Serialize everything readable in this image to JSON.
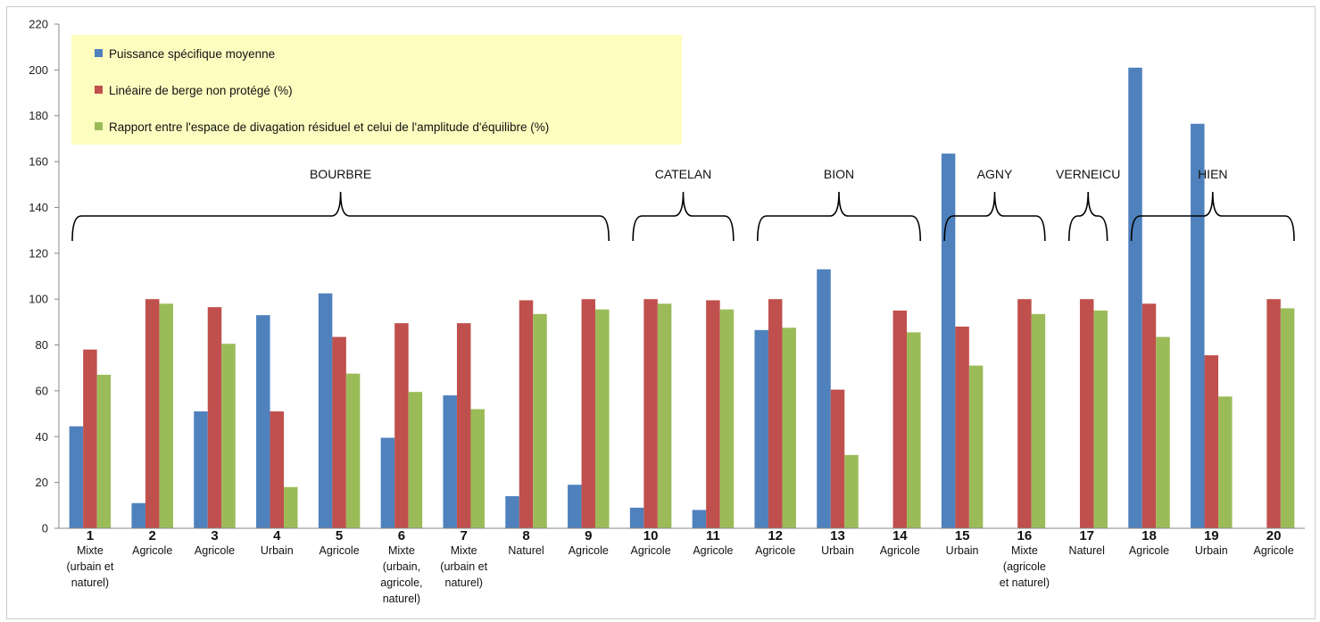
{
  "chart_data": {
    "type": "bar",
    "ylim": [
      0,
      220
    ],
    "yticks": [
      0,
      20,
      40,
      60,
      80,
      100,
      120,
      140,
      160,
      180,
      200,
      220
    ],
    "grid": false,
    "legend_position": "top-left",
    "categories": [
      "1",
      "2",
      "3",
      "4",
      "5",
      "6",
      "7",
      "8",
      "9",
      "10",
      "11",
      "12",
      "13",
      "14",
      "15",
      "16",
      "17",
      "18",
      "19",
      "20"
    ],
    "category_sublabels": [
      [
        "Mixte",
        "(urbain et",
        "naturel)"
      ],
      [
        "Agricole"
      ],
      [
        "Agricole"
      ],
      [
        "Urbain"
      ],
      [
        "Agricole"
      ],
      [
        "Mixte",
        "(urbain,",
        "agricole,",
        "naturel)"
      ],
      [
        "Mixte",
        "(urbain et",
        "naturel)"
      ],
      [
        "Naturel"
      ],
      [
        "Agricole"
      ],
      [
        "Agricole"
      ],
      [
        "Agricole"
      ],
      [
        "Agricole"
      ],
      [
        "Urbain"
      ],
      [
        "Agricole"
      ],
      [
        "Urbain"
      ],
      [
        "Mixte",
        "(agricole",
        "et naturel)"
      ],
      [
        "Naturel"
      ],
      [
        "Agricole"
      ],
      [
        "Urbain"
      ],
      [
        "Agricole"
      ]
    ],
    "series": [
      {
        "name": "Puissance spécifique moyenne",
        "color": "#4f81bd",
        "values": [
          44.5,
          11,
          51,
          93,
          102.5,
          39.5,
          58,
          14,
          19,
          9,
          8,
          86.5,
          113,
          0,
          163.5,
          0,
          0,
          201,
          176.5,
          0
        ]
      },
      {
        "name": "Linéaire de berge non protégé (%)",
        "color": "#c0504d",
        "values": [
          78,
          100,
          96.5,
          51,
          83.5,
          89.5,
          89.5,
          99.5,
          100,
          100,
          99.5,
          100,
          60.5,
          95,
          88,
          100,
          100,
          98,
          75.5,
          100
        ]
      },
      {
        "name": "Rapport entre l'espace de divagation résiduel et celui de l'amplitude d'équilibre (%)",
        "color": "#9bbb59",
        "values": [
          67,
          98,
          80.5,
          18,
          67.5,
          59.5,
          52,
          93.5,
          95.5,
          98,
          95.5,
          87.5,
          32,
          85.5,
          71,
          93.5,
          95,
          83.5,
          57.5,
          96
        ]
      }
    ],
    "groups": [
      {
        "name": "BOURBRE",
        "from": 1,
        "to": 9
      },
      {
        "name": "CATELAN",
        "from": 10,
        "to": 11
      },
      {
        "name": "BION",
        "from": 12,
        "to": 14
      },
      {
        "name": "AGNY",
        "from": 15,
        "to": 16
      },
      {
        "name": "VERNEICU",
        "from": 17,
        "to": 17
      },
      {
        "name": "HIEN",
        "from": 18,
        "to": 20
      }
    ]
  }
}
